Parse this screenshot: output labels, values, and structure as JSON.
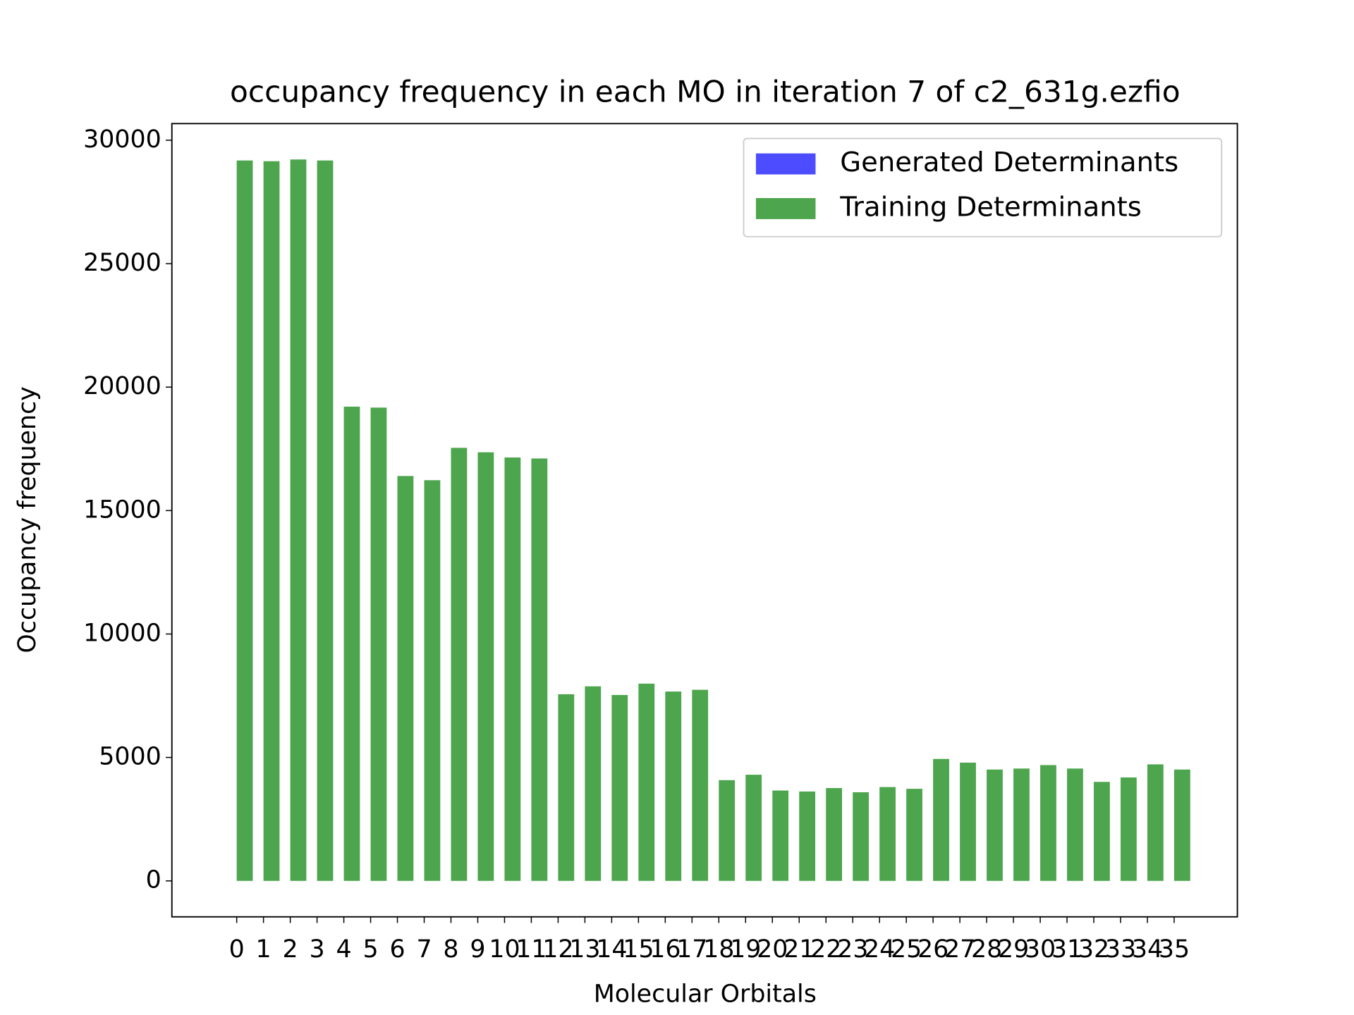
{
  "chart_data": {
    "type": "bar",
    "title": "occupancy frequency in each MO in iteration 7 of c2_631g.ezfio",
    "xlabel": "Molecular Orbitals",
    "ylabel": "Occupancy frequency",
    "x": [
      0,
      1,
      2,
      3,
      4,
      5,
      6,
      7,
      8,
      9,
      10,
      11,
      12,
      13,
      14,
      15,
      16,
      17,
      18,
      19,
      20,
      21,
      22,
      23,
      24,
      25,
      26,
      27,
      28,
      29,
      30,
      31,
      32,
      33,
      34,
      35
    ],
    "series": [
      {
        "name": "Generated Determinants",
        "color": "#4d4dff",
        "values": [
          0,
          0,
          0,
          0,
          0,
          0,
          0,
          0,
          0,
          0,
          0,
          0,
          0,
          0,
          0,
          0,
          0,
          0,
          0,
          0,
          0,
          0,
          0,
          0,
          0,
          0,
          0,
          0,
          0,
          0,
          0,
          0,
          0,
          0,
          0,
          0
        ]
      },
      {
        "name": "Training Determinants",
        "color": "#4da64d",
        "values": [
          29180,
          29150,
          29220,
          29180,
          19210,
          19170,
          16400,
          16230,
          17540,
          17360,
          17150,
          17110,
          7560,
          7880,
          7530,
          7990,
          7670,
          7740,
          4080,
          4300,
          3660,
          3620,
          3760,
          3590,
          3800,
          3730,
          4940,
          4790,
          4510,
          4550,
          4690,
          4550,
          4010,
          4190,
          4720,
          4510
        ]
      }
    ],
    "xlim": [
      -2.42,
      37.36
    ],
    "xticks": [
      0,
      1,
      2,
      3,
      4,
      5,
      6,
      7,
      8,
      9,
      10,
      11,
      12,
      13,
      14,
      15,
      16,
      17,
      18,
      19,
      20,
      21,
      22,
      23,
      24,
      25,
      26,
      27,
      28,
      29,
      30,
      31,
      32,
      33,
      34,
      35
    ],
    "ylim": [
      -1456,
      30674
    ],
    "yticks": [
      0,
      5000,
      10000,
      15000,
      20000,
      25000,
      30000
    ],
    "legend": "upper right",
    "grid": false
  }
}
